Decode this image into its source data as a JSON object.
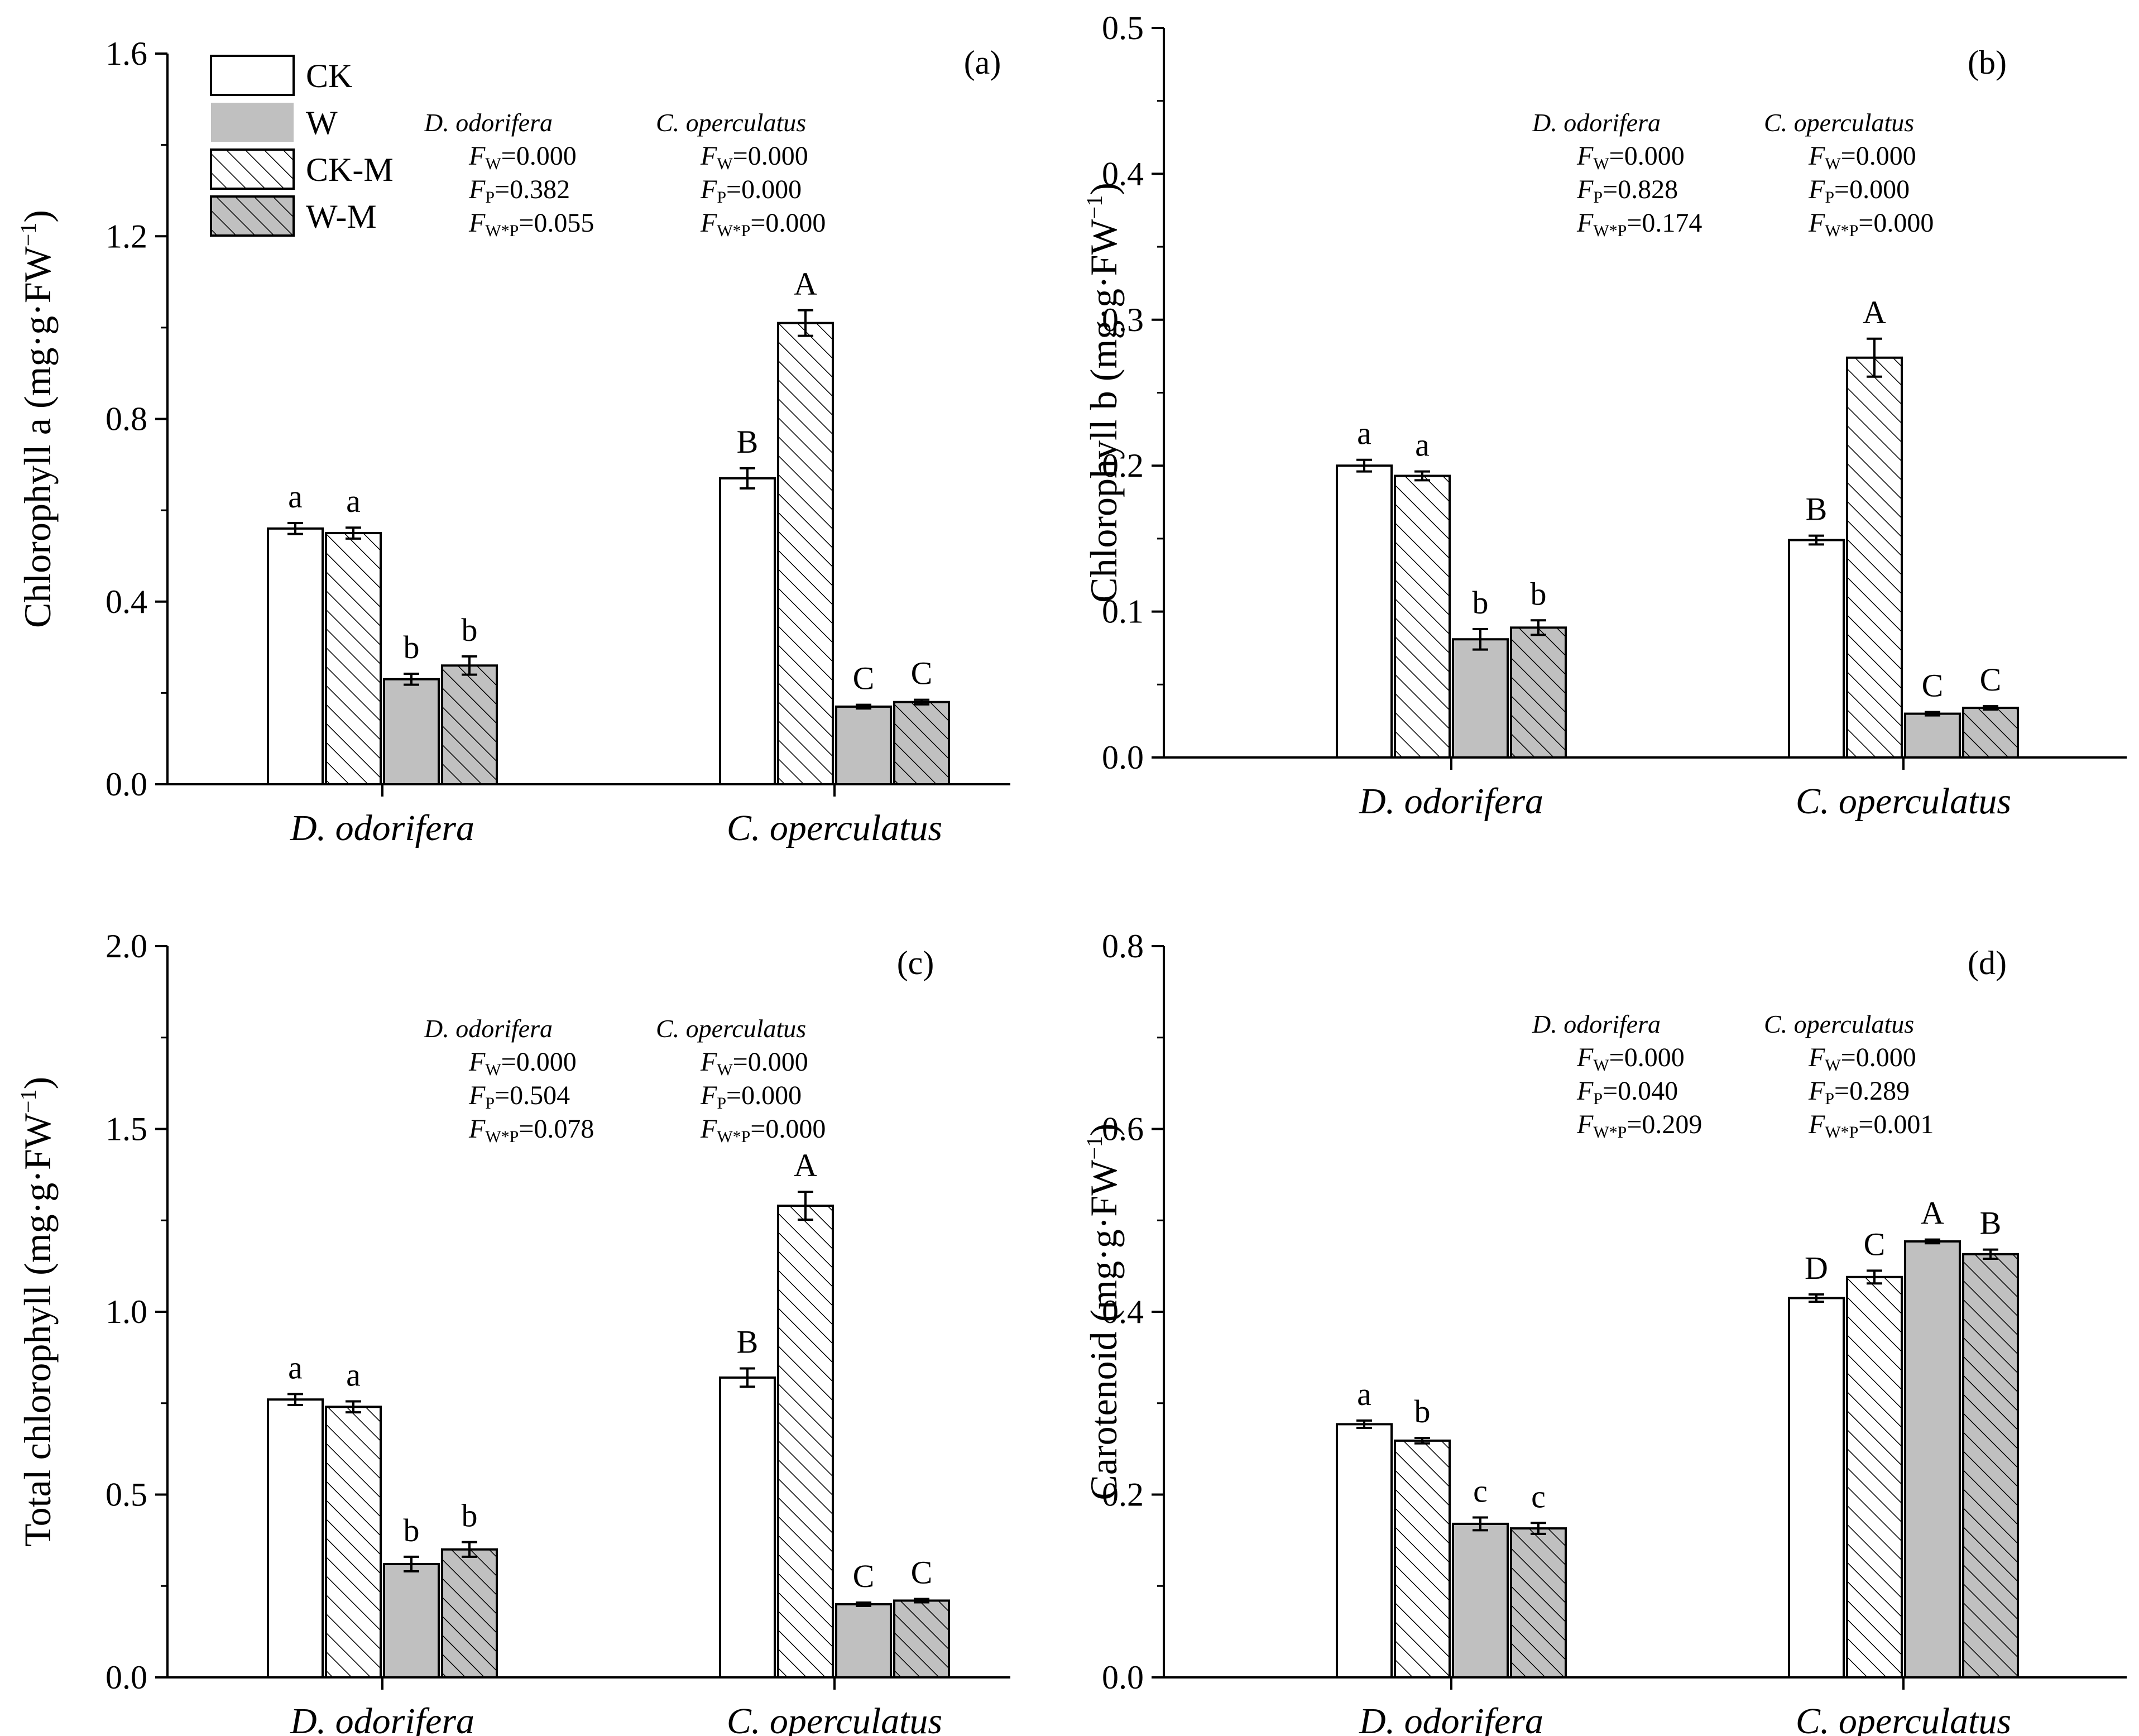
{
  "legend": {
    "entries": [
      {
        "key": "CK",
        "label": "CK",
        "fill": "#ffffff",
        "hatch": false
      },
      {
        "key": "W",
        "label": "W",
        "fill": "#c0c0c0",
        "hatch": false
      },
      {
        "key": "CK-M",
        "label": "CK-M",
        "fill": "#ffffff",
        "hatch": true
      },
      {
        "key": "W-M",
        "label": "W-M",
        "fill": "#c0c0c0",
        "hatch": true
      }
    ]
  },
  "chart_data": [
    {
      "type": "bar",
      "panel_label": "(a)",
      "ylabel_main": "Chlorophyll a (mg·g·FW",
      "ylabel_sup": "−1",
      "ylabel_close": ")",
      "ylim": [
        0,
        1.6
      ],
      "yticks": [
        "0.0",
        "0.4",
        "0.8",
        "1.2",
        "1.6"
      ],
      "categories": [
        "D. odorifera",
        "C. operculatus"
      ],
      "bar_order": [
        "CK",
        "CK-M",
        "W",
        "W-M"
      ],
      "values": [
        [
          0.56,
          0.55,
          0.23,
          0.26
        ],
        [
          0.67,
          1.01,
          0.17,
          0.18
        ]
      ],
      "errors": [
        [
          0.012,
          0.012,
          0.012,
          0.02
        ],
        [
          0.022,
          0.028,
          0.004,
          0.005
        ]
      ],
      "letters": [
        [
          "a",
          "a",
          "b",
          "b"
        ],
        [
          "B",
          "A",
          "C",
          "C"
        ]
      ],
      "stats": {
        "species": [
          "D. odorifera",
          "C. operculatus"
        ],
        "fw": [
          "=0.000",
          "=0.000"
        ],
        "fp": [
          "=0.382",
          "=0.000"
        ],
        "fwp": [
          "=0.055",
          "=0.000"
        ]
      }
    },
    {
      "type": "bar",
      "panel_label": "(b)",
      "ylabel_main": "Chlorophyll b (mg·g·FW",
      "ylabel_sup": "−1",
      "ylabel_close": ")",
      "ylim": [
        0,
        0.5
      ],
      "yticks": [
        "0.0",
        "0.1",
        "0.2",
        "0.3",
        "0.4",
        "0.5"
      ],
      "categories": [
        "D. odorifera",
        "C. operculatus"
      ],
      "bar_order": [
        "CK",
        "CK-M",
        "W",
        "W-M"
      ],
      "values": [
        [
          0.2,
          0.193,
          0.081,
          0.089
        ],
        [
          0.149,
          0.274,
          0.03,
          0.034
        ]
      ],
      "errors": [
        [
          0.004,
          0.003,
          0.007,
          0.005
        ],
        [
          0.003,
          0.013,
          0.001,
          0.001
        ]
      ],
      "letters": [
        [
          "a",
          "a",
          "b",
          "b"
        ],
        [
          "B",
          "A",
          "C",
          "C"
        ]
      ],
      "stats": {
        "species": [
          "D. odorifera",
          "C. operculatus"
        ],
        "fw": [
          "=0.000",
          "=0.000"
        ],
        "fp": [
          "=0.828",
          "=0.000"
        ],
        "fwp": [
          "=0.174",
          "=0.000"
        ]
      }
    },
    {
      "type": "bar",
      "panel_label": "(c)",
      "ylabel_main": "Total chlorophyll (mg·g·FW",
      "ylabel_sup": "−1",
      "ylabel_close": ")",
      "ylim": [
        0,
        2.0
      ],
      "yticks": [
        "0.0",
        "0.5",
        "1.0",
        "1.5",
        "2.0"
      ],
      "categories": [
        "D. odorifera",
        "C. operculatus"
      ],
      "bar_order": [
        "CK",
        "CK-M",
        "W",
        "W-M"
      ],
      "values": [
        [
          0.76,
          0.74,
          0.31,
          0.35
        ],
        [
          0.82,
          1.29,
          0.2,
          0.21
        ]
      ],
      "errors": [
        [
          0.015,
          0.015,
          0.02,
          0.02
        ],
        [
          0.025,
          0.038,
          0.004,
          0.004
        ]
      ],
      "letters": [
        [
          "a",
          "a",
          "b",
          "b"
        ],
        [
          "B",
          "A",
          "C",
          "C"
        ]
      ],
      "stats": {
        "species": [
          "D. odorifera",
          "C. operculatus"
        ],
        "fw": [
          "=0.000",
          "=0.000"
        ],
        "fp": [
          "=0.504",
          "=0.000"
        ],
        "fwp": [
          "=0.078",
          "=0.000"
        ]
      }
    },
    {
      "type": "bar",
      "panel_label": "(d)",
      "ylabel_main": "Carotenoid (mg·g·FW",
      "ylabel_sup": "−1",
      "ylabel_close": ")",
      "ylim": [
        0,
        0.8
      ],
      "yticks": [
        "0.0",
        "0.2",
        "0.4",
        "0.6",
        "0.8"
      ],
      "categories": [
        "D. odorifera",
        "C. operculatus"
      ],
      "bar_order": [
        "CK",
        "CK-M",
        "W",
        "W-M"
      ],
      "values": [
        [
          0.277,
          0.259,
          0.168,
          0.163
        ],
        [
          0.415,
          0.438,
          0.477,
          0.463
        ]
      ],
      "errors": [
        [
          0.004,
          0.003,
          0.007,
          0.006
        ],
        [
          0.004,
          0.007,
          0.002,
          0.005
        ]
      ],
      "letters": [
        [
          "a",
          "b",
          "c",
          "c"
        ],
        [
          "D",
          "C",
          "A",
          "B"
        ]
      ],
      "stats": {
        "species": [
          "D. odorifera",
          "C. operculatus"
        ],
        "fw": [
          "=0.000",
          "=0.000"
        ],
        "fp": [
          "=0.040",
          "=0.289"
        ],
        "fwp": [
          "=0.209",
          "=0.001"
        ]
      }
    }
  ]
}
